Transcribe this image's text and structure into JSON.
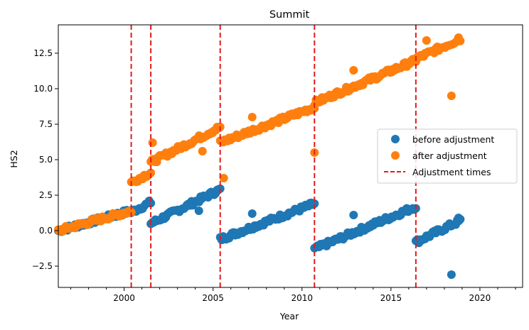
{
  "chart_data": {
    "type": "scatter",
    "title": "Summit",
    "xlabel": "Year",
    "ylabel": "HS2",
    "xlim": [
      1996.3,
      2022.4
    ],
    "ylim": [
      -4.0,
      14.5
    ],
    "x_ticks": [
      2000,
      2005,
      2010,
      2015,
      2020
    ],
    "x_tick_labels": [
      "2000",
      "2005",
      "2010",
      "2015",
      "2020"
    ],
    "y_ticks": [
      -2.5,
      0.0,
      2.5,
      5.0,
      7.5,
      10.0,
      12.5
    ],
    "y_tick_labels": [
      "−2.5",
      "0.0",
      "2.5",
      "5.0",
      "7.5",
      "10.0",
      "12.5"
    ],
    "grid": false,
    "legend_position": "center-right",
    "adjustment_times": [
      2000.4,
      2001.5,
      2005.4,
      2010.7,
      2016.4
    ],
    "series": [
      {
        "name": "before adjustment",
        "color": "#1f77b4",
        "marker": "circle",
        "segments": [
          {
            "x": [
              1996.3,
              2000.4
            ],
            "y": [
              0.0,
              1.4
            ]
          },
          {
            "x": [
              2000.4,
              2001.5
            ],
            "y": [
              1.3,
              2.0
            ]
          },
          {
            "x": [
              2001.5,
              2005.4
            ],
            "y": [
              0.5,
              2.9
            ]
          },
          {
            "x": [
              2005.4,
              2010.7
            ],
            "y": [
              -0.6,
              1.9
            ]
          },
          {
            "x": [
              2010.7,
              2016.4
            ],
            "y": [
              -1.3,
              1.7
            ]
          },
          {
            "x": [
              2016.4,
              2018.9
            ],
            "y": [
              -0.8,
              0.7
            ]
          }
        ],
        "outliers": [
          [
            2018.4,
            -3.1
          ],
          [
            2007.2,
            1.2
          ],
          [
            2012.9,
            1.1
          ],
          [
            2018.8,
            0.9
          ],
          [
            2004.2,
            1.4
          ],
          [
            2001.6,
            0.6
          ]
        ]
      },
      {
        "name": "after adjustment",
        "color": "#ff7f0e",
        "marker": "circle",
        "segments": [
          {
            "x": [
              1996.3,
              2000.4
            ],
            "y": [
              0.0,
              1.4
            ]
          },
          {
            "x": [
              2000.4,
              2001.5
            ],
            "y": [
              3.4,
              4.1
            ]
          },
          {
            "x": [
              2001.5,
              2005.4
            ],
            "y": [
              4.8,
              7.3
            ]
          },
          {
            "x": [
              2005.4,
              2010.7
            ],
            "y": [
              6.2,
              8.7
            ]
          },
          {
            "x": [
              2010.7,
              2016.4
            ],
            "y": [
              9.0,
              12.0
            ]
          },
          {
            "x": [
              2016.4,
              2018.9
            ],
            "y": [
              12.1,
              13.5
            ]
          }
        ],
        "outliers": [
          [
            2018.4,
            9.5
          ],
          [
            2001.6,
            6.2
          ],
          [
            2005.6,
            3.7
          ],
          [
            2010.7,
            5.5
          ],
          [
            2012.9,
            11.3
          ],
          [
            2007.2,
            8.0
          ],
          [
            2017.0,
            13.4
          ],
          [
            2018.8,
            13.6
          ],
          [
            2004.4,
            5.6
          ]
        ]
      },
      {
        "name": "Adjustment times",
        "color": "#e41a1c",
        "line_style": "dashed"
      }
    ]
  }
}
